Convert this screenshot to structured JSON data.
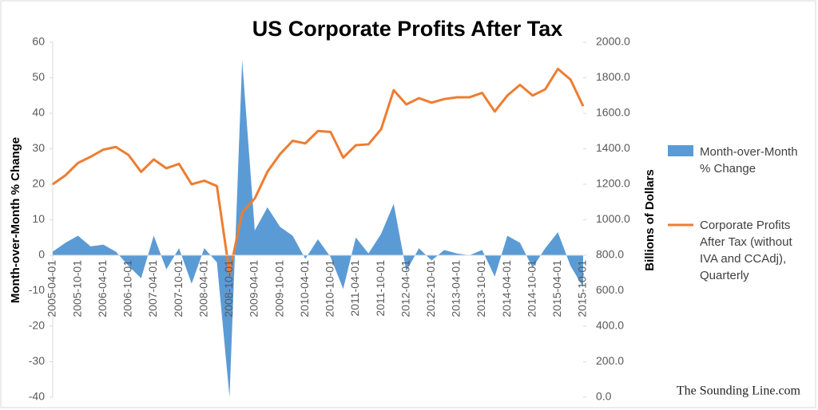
{
  "chart_data": {
    "type": "area-line",
    "title": "US Corporate Profits After Tax",
    "categories": [
      "2005-04-01",
      null,
      "2005-10-01",
      null,
      "2006-04-01",
      null,
      "2006-10-01",
      null,
      "2007-04-01",
      null,
      "2007-10-01",
      null,
      "2008-04-01",
      null,
      "2008-10-01",
      null,
      "2009-04-01",
      null,
      "2009-10-01",
      null,
      "2010-04-01",
      null,
      "2010-10-01",
      null,
      "2011-04-01",
      null,
      "2011-10-01",
      null,
      "2012-04-01",
      null,
      "2012-10-01",
      null,
      "2013-04-01",
      null,
      "2013-10-01",
      null,
      "2014-04-01",
      null,
      "2014-10-01",
      null,
      "2015-04-01",
      null,
      "2015-10-01"
    ],
    "series": [
      {
        "name": "Month-over-Month % Change",
        "type": "area",
        "color": "#5b9bd5",
        "axis": "y",
        "values": [
          1,
          3.5,
          5.5,
          2.5,
          3,
          1,
          -3,
          -6.5,
          5.5,
          -4,
          2,
          -8,
          2,
          -2,
          -40,
          55,
          7,
          13.5,
          8,
          5.5,
          -1,
          4.5,
          -0.5,
          -9.5,
          5,
          0.5,
          6,
          14.5,
          -4.5,
          2,
          -1.5,
          1.5,
          0.5,
          0,
          1.5,
          -6,
          5.5,
          3.5,
          -3.5,
          2,
          6.5,
          -3,
          -9
        ]
      },
      {
        "name": "Corporate Profits After Tax (without IVA and CCAdj), Quarterly",
        "type": "line",
        "color": "#ed7d31",
        "axis": "y2",
        "values": [
          1200,
          1250,
          1320,
          1355,
          1395,
          1410,
          1365,
          1270,
          1340,
          1290,
          1315,
          1200,
          1220,
          1190,
          700,
          1040,
          1120,
          1270,
          1370,
          1445,
          1430,
          1500,
          1495,
          1350,
          1420,
          1425,
          1510,
          1730,
          1650,
          1685,
          1660,
          1680,
          1690,
          1690,
          1715,
          1610,
          1700,
          1760,
          1700,
          1735,
          1850,
          1790,
          1640
        ]
      }
    ],
    "ylabel": "Month-over-Month % Change",
    "y2label": "Billions of Dollars",
    "ylim": [
      -40,
      60
    ],
    "yticks": [
      -40,
      -30,
      -20,
      -10,
      0,
      10,
      20,
      30,
      40,
      50,
      60
    ],
    "y2lim": [
      0,
      2000
    ],
    "y2ticks": [
      {
        "value": 0,
        "label": "0.0"
      },
      {
        "value": 200,
        "label": "200.0"
      },
      {
        "value": 400,
        "label": "400.0"
      },
      {
        "value": 600,
        "label": "600.0"
      },
      {
        "value": 800,
        "label": "800.0"
      },
      {
        "value": 1000,
        "label": "1000.0"
      },
      {
        "value": 1200,
        "label": "1200.0"
      },
      {
        "value": 1400,
        "label": "1400.0"
      },
      {
        "value": 1600,
        "label": "1600.0"
      },
      {
        "value": 1800,
        "label": "1800.0"
      },
      {
        "value": 2000,
        "label": "2000.0"
      }
    ],
    "legend": "right",
    "grid": false,
    "annotation": "The Sounding Line.com"
  }
}
